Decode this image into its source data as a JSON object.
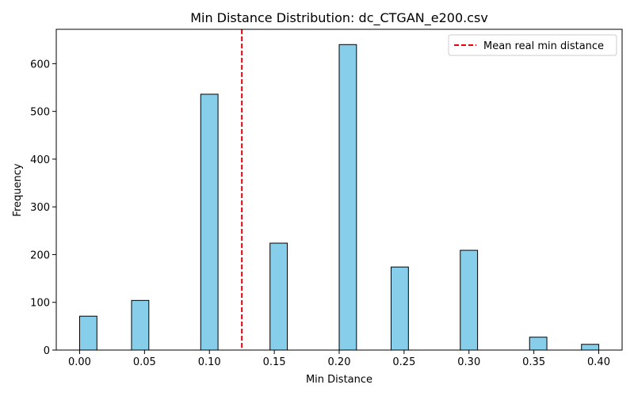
{
  "chart_data": {
    "type": "bar",
    "title": "Min Distance Distribution: dc_CTGAN_e200.csv",
    "xlabel": "Min Distance",
    "ylabel": "Frequency",
    "xlim": [
      -0.018,
      0.418
    ],
    "ylim": [
      0,
      672
    ],
    "bin_width": 0.01333,
    "x_ticks": [
      0.0,
      0.05,
      0.1,
      0.15,
      0.2,
      0.25,
      0.3,
      0.35,
      0.4
    ],
    "x_tick_labels": [
      "0.00",
      "0.05",
      "0.10",
      "0.15",
      "0.20",
      "0.25",
      "0.30",
      "0.35",
      "0.40"
    ],
    "y_ticks": [
      0,
      100,
      200,
      300,
      400,
      500,
      600
    ],
    "y_tick_labels": [
      "0",
      "100",
      "200",
      "300",
      "400",
      "500",
      "600"
    ],
    "bins": [
      {
        "start": 0.0,
        "value": 71
      },
      {
        "start": 0.04,
        "value": 104
      },
      {
        "start": 0.0933,
        "value": 536
      },
      {
        "start": 0.1467,
        "value": 224
      },
      {
        "start": 0.2,
        "value": 640
      },
      {
        "start": 0.24,
        "value": 174
      },
      {
        "start": 0.2933,
        "value": 209
      },
      {
        "start": 0.3467,
        "value": 27
      },
      {
        "start": 0.3867,
        "value": 12
      }
    ],
    "reference_line": {
      "x": 0.125,
      "label": "Mean real min distance",
      "color": "#e8000b",
      "style": "dashed"
    },
    "legend_position": "top-right",
    "grid": false,
    "bar_color": "#87ceeb",
    "bar_edge_color": "#000000"
  }
}
